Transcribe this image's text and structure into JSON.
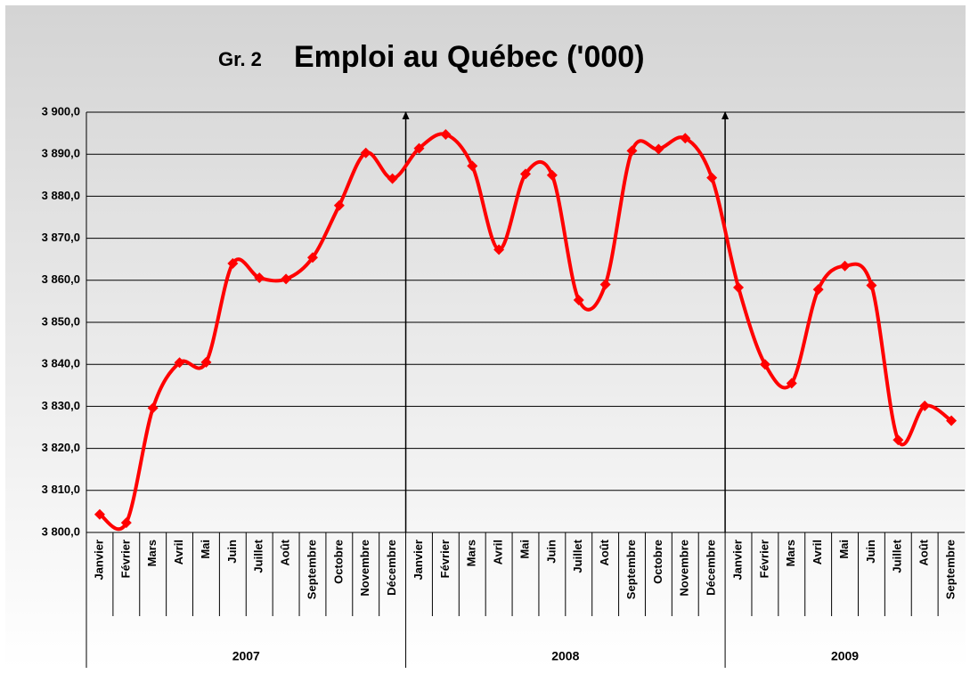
{
  "chart_data": {
    "type": "line",
    "chart_number": "Gr. 2",
    "title": "Emploi au Québec ('000)",
    "categories": [
      "Janvier",
      "Février",
      "Mars",
      "Avril",
      "Mai",
      "Juin",
      "Juillet",
      "Août",
      "Septembre",
      "Octobre",
      "Novembre",
      "Décembre",
      "Janvier",
      "Février",
      "Mars",
      "Avril",
      "Mai",
      "Juin",
      "Juillet",
      "Août",
      "Septembre",
      "Octobre",
      "Novembre",
      "Décembre",
      "Janvier",
      "Février",
      "Mars",
      "Avril",
      "Mai",
      "Juin",
      "Juillet",
      "Août",
      "Septembre"
    ],
    "years": [
      "2007",
      "2008",
      "2009"
    ],
    "series": [
      {
        "name": "Emploi",
        "color": "#ff0000",
        "values": [
          3804.3,
          3802.3,
          3829.6,
          3840.4,
          3840.5,
          3864.0,
          3860.6,
          3860.3,
          3865.4,
          3877.8,
          3890.3,
          3884.2,
          3891.4,
          3894.7,
          3887.2,
          3867.3,
          3885.3,
          3885.0,
          3855.3,
          3859.0,
          3890.8,
          3891.2,
          3893.8,
          3884.4,
          3858.3,
          3840.0,
          3835.5,
          3857.8,
          3863.4,
          3858.8,
          3822.0,
          3830.1,
          3826.6
        ]
      }
    ],
    "ylim": [
      3800,
      3900
    ],
    "yticks": [
      {
        "value": 3800,
        "label": "3 800,0"
      },
      {
        "value": 3810,
        "label": "3 810,0"
      },
      {
        "value": 3820,
        "label": "3 820,0"
      },
      {
        "value": 3830,
        "label": "3 830,0"
      },
      {
        "value": 3840,
        "label": "3 840,0"
      },
      {
        "value": 3850,
        "label": "3 850,0"
      },
      {
        "value": 3860,
        "label": "3 860,0"
      },
      {
        "value": 3870,
        "label": "3 870,0"
      },
      {
        "value": 3880,
        "label": "3 880,0"
      },
      {
        "value": 3890,
        "label": "3 890,0"
      },
      {
        "value": 3900,
        "label": "3 900,0"
      }
    ],
    "grid": true
  }
}
